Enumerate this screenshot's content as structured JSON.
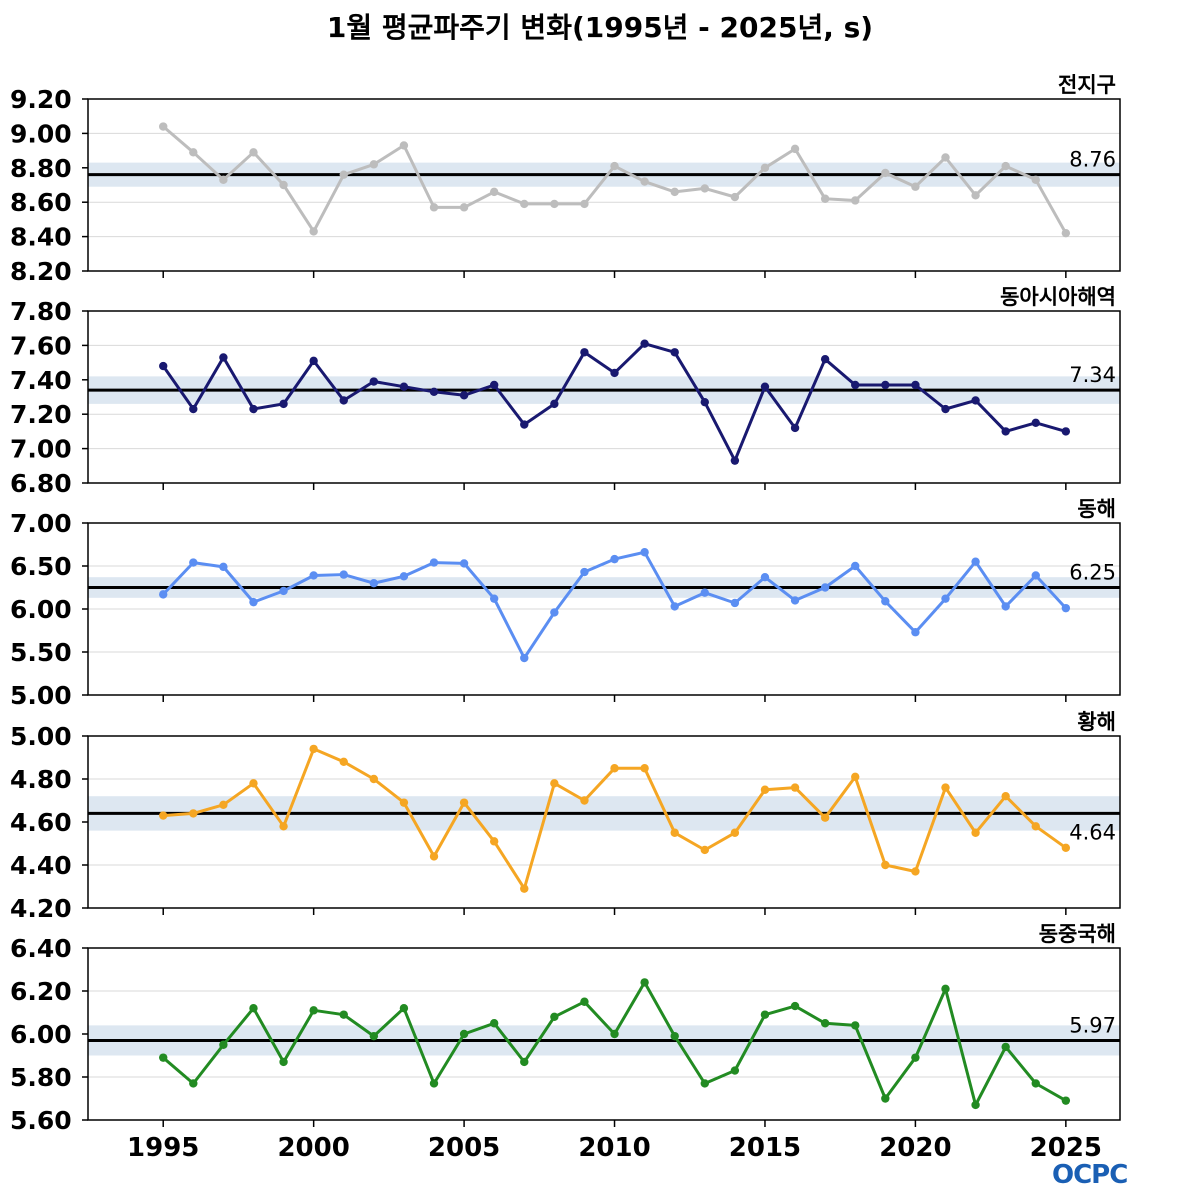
{
  "title": "1월 평균파주기 변화(1995년 - 2025년, s)",
  "logo": "OCPC",
  "chart_data": {
    "type": "line",
    "x": [
      1995,
      1996,
      1997,
      1998,
      1999,
      2000,
      2001,
      2002,
      2003,
      2004,
      2005,
      2006,
      2007,
      2008,
      2009,
      2010,
      2011,
      2012,
      2013,
      2014,
      2015,
      2016,
      2017,
      2018,
      2019,
      2020,
      2021,
      2022,
      2023,
      2024,
      2025
    ],
    "xticks": [
      "1995",
      "2000",
      "2005",
      "2010",
      "2015",
      "2020",
      "2025"
    ],
    "xlim": [
      1992.5,
      2026.8
    ],
    "panels": [
      {
        "name": "전지구",
        "color": "#bdbdbd",
        "mean": 8.76,
        "mean_label": "8.76",
        "band": 0.07,
        "ylim": [
          8.2,
          9.2
        ],
        "yticks": [
          "8.20",
          "8.40",
          "8.60",
          "8.80",
          "9.00",
          "9.20"
        ],
        "values": [
          9.04,
          8.89,
          8.73,
          8.89,
          8.7,
          8.43,
          8.76,
          8.82,
          8.93,
          8.57,
          8.57,
          8.66,
          8.59,
          8.59,
          8.59,
          8.81,
          8.72,
          8.66,
          8.68,
          8.63,
          8.8,
          8.91,
          8.62,
          8.61,
          8.77,
          8.69,
          8.86,
          8.64,
          8.81,
          8.73,
          8.42
        ]
      },
      {
        "name": "동아시아해역",
        "color": "#191970",
        "mean": 7.34,
        "mean_label": "7.34",
        "band": 0.08,
        "ylim": [
          6.8,
          7.8
        ],
        "yticks": [
          "6.80",
          "7.00",
          "7.20",
          "7.40",
          "7.60",
          "7.80"
        ],
        "values": [
          7.48,
          7.23,
          7.53,
          7.23,
          7.26,
          7.51,
          7.28,
          7.39,
          7.36,
          7.33,
          7.31,
          7.37,
          7.14,
          7.26,
          7.56,
          7.44,
          7.61,
          7.56,
          7.27,
          6.93,
          7.36,
          7.12,
          7.52,
          7.37,
          7.37,
          7.37,
          7.23,
          7.28,
          7.1,
          7.15,
          7.1
        ]
      },
      {
        "name": "동해",
        "color": "#5b8ef2",
        "mean": 6.25,
        "mean_label": "6.25",
        "band": 0.12,
        "ylim": [
          5.0,
          7.0
        ],
        "yticks": [
          "5.00",
          "5.50",
          "6.00",
          "6.50",
          "7.00"
        ],
        "values": [
          6.17,
          6.54,
          6.49,
          6.08,
          6.21,
          6.39,
          6.4,
          6.3,
          6.38,
          6.54,
          6.53,
          6.12,
          5.43,
          5.96,
          6.43,
          6.58,
          6.66,
          6.03,
          6.19,
          6.07,
          6.37,
          6.1,
          6.25,
          6.5,
          6.09,
          5.73,
          6.12,
          6.55,
          6.03,
          6.39,
          6.01
        ]
      },
      {
        "name": "황해",
        "color": "#f5a623",
        "mean": 4.64,
        "mean_label": "4.64",
        "band": 0.08,
        "ylim": [
          4.2,
          5.0
        ],
        "yticks": [
          "4.20",
          "4.40",
          "4.60",
          "4.80",
          "5.00"
        ],
        "values": [
          4.63,
          4.64,
          4.68,
          4.78,
          4.58,
          4.94,
          4.88,
          4.8,
          4.69,
          4.44,
          4.69,
          4.51,
          4.29,
          4.78,
          4.7,
          4.85,
          4.85,
          4.55,
          4.47,
          4.55,
          4.75,
          4.76,
          4.62,
          4.81,
          4.4,
          4.37,
          4.76,
          4.55,
          4.72,
          4.58,
          4.48
        ]
      },
      {
        "name": "동중국해",
        "color": "#228b22",
        "mean": 5.97,
        "mean_label": "5.97",
        "band": 0.07,
        "ylim": [
          5.6,
          6.4
        ],
        "yticks": [
          "5.60",
          "5.80",
          "6.00",
          "6.20",
          "6.40"
        ],
        "values": [
          5.89,
          5.77,
          5.95,
          6.12,
          5.87,
          6.11,
          6.09,
          5.99,
          6.12,
          5.77,
          6.0,
          6.05,
          5.87,
          6.08,
          6.15,
          6.0,
          6.24,
          5.99,
          5.77,
          5.83,
          6.09,
          6.13,
          6.05,
          6.04,
          5.7,
          5.89,
          6.21,
          5.67,
          5.94,
          5.77,
          5.69
        ]
      }
    ],
    "grid": true
  }
}
